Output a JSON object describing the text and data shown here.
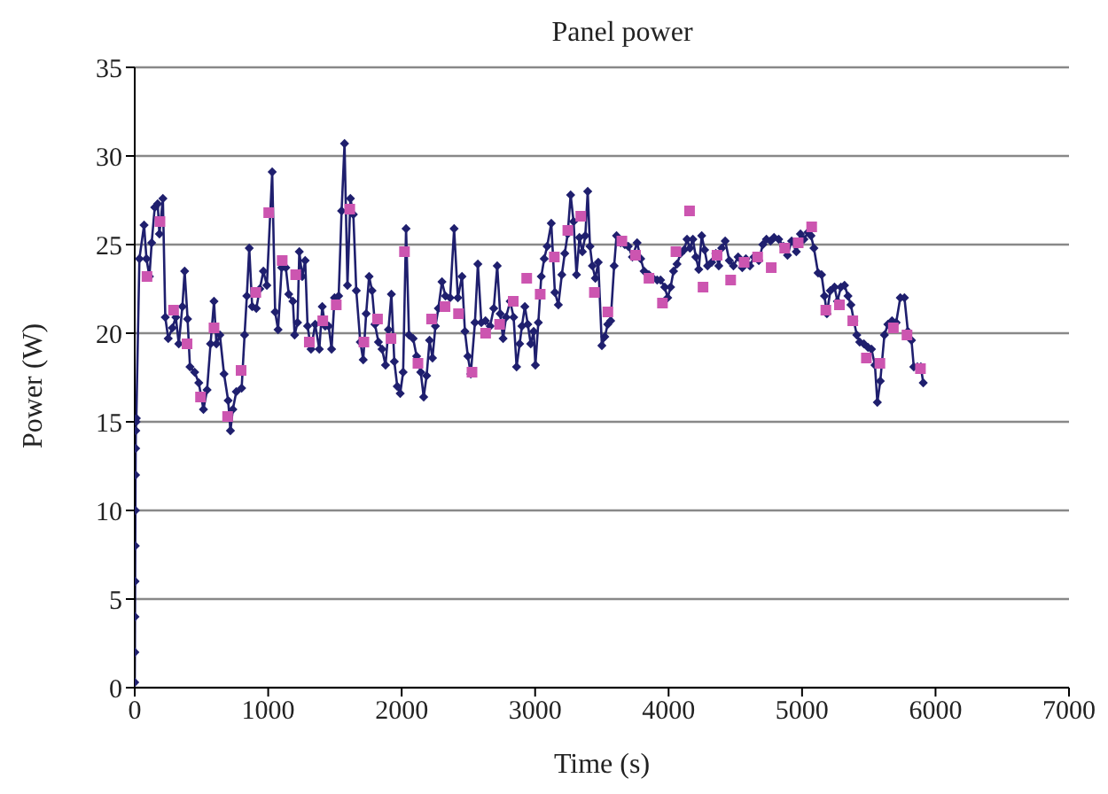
{
  "chart_data": {
    "type": "line",
    "title": "Panel power",
    "xlabel": "Time (s)",
    "ylabel": "Power (W)",
    "xlim": [
      0,
      7000
    ],
    "xticks": [
      0,
      1000,
      2000,
      3000,
      4000,
      5000,
      6000,
      7000
    ],
    "ylim": [
      0,
      35
    ],
    "yticks": [
      0,
      5,
      10,
      15,
      20,
      25,
      30,
      35
    ],
    "grid": "y",
    "legend": false,
    "series": [
      {
        "color": "#1f1f6e",
        "marker": "diamond",
        "x": [
          0,
          1,
          2,
          3,
          4,
          5,
          6,
          7,
          8,
          10,
          12,
          35,
          70,
          88,
          110,
          127,
          150,
          172,
          185,
          211,
          229,
          251,
          282,
          308,
          330,
          357,
          374,
          396,
          414,
          449,
          480,
          515,
          542,
          568,
          594,
          612,
          638,
          669,
          700,
          717,
          735,
          761,
          801,
          823,
          840,
          858,
          880,
          911,
          937,
          964,
          990,
          1030,
          1052,
          1074,
          1101,
          1132,
          1154,
          1185,
          1198,
          1220,
          1233,
          1255,
          1277,
          1295,
          1321,
          1352,
          1383,
          1405,
          1427,
          1453,
          1475,
          1497,
          1528,
          1550,
          1572,
          1594,
          1616,
          1638,
          1660,
          1690,
          1712,
          1734,
          1756,
          1778,
          1800,
          1826,
          1853,
          1879,
          1901,
          1923,
          1945,
          1967,
          1989,
          2011,
          2033,
          2055,
          2086,
          2112,
          2143,
          2165,
          2187,
          2209,
          2231,
          2253,
          2275,
          2302,
          2328,
          2363,
          2393,
          2421,
          2452,
          2474,
          2496,
          2518,
          2549,
          2571,
          2597,
          2628,
          2663,
          2690,
          2716,
          2738,
          2760,
          2782,
          2813,
          2839,
          2861,
          2884,
          2901,
          2923,
          2945,
          2967,
          2989,
          3002,
          3024,
          3046,
          3068,
          3090,
          3121,
          3148,
          3174,
          3200,
          3222,
          3244,
          3266,
          3288,
          3310,
          3332,
          3354,
          3376,
          3394,
          3411,
          3429,
          3451,
          3473,
          3500,
          3522,
          3544,
          3566,
          3592,
          3610,
          3641,
          3672,
          3698,
          3729,
          3764,
          3791,
          3817,
          3852,
          3883,
          3914,
          3940,
          3971,
          3993,
          4015,
          4037,
          4063,
          4090,
          4116,
          4138,
          4160,
          4182,
          4204,
          4226,
          4248,
          4270,
          4292,
          4323,
          4354,
          4376,
          4398,
          4424,
          4455,
          4486,
          4521,
          4552,
          4579,
          4609,
          4640,
          4676,
          4706,
          4733,
          4764,
          4790,
          4825,
          4861,
          4891,
          4922,
          4957,
          4988,
          5014,
          5045,
          5067,
          5089,
          5120,
          5146,
          5168,
          5186,
          5212,
          5243,
          5265,
          5291,
          5318,
          5344,
          5366,
          5388,
          5410,
          5432,
          5463,
          5494,
          5520,
          5546,
          5564,
          5586,
          5617,
          5643,
          5674,
          5705,
          5736,
          5767,
          5793,
          5820,
          5837,
          5864,
          5890,
          5908
        ],
        "values": [
          0.3,
          2,
          4,
          6,
          8,
          10,
          12,
          13.5,
          14.5,
          15,
          15.2,
          24.2,
          26.1,
          24.2,
          23.2,
          25.1,
          27.1,
          27.3,
          25.6,
          27.6,
          20.9,
          19.7,
          20.3,
          20.9,
          19.4,
          21.5,
          23.5,
          20.8,
          18.1,
          17.8,
          17.2,
          15.7,
          16.8,
          19.4,
          21.8,
          19.4,
          19.9,
          17.7,
          16.2,
          14.5,
          15.7,
          16.7,
          16.9,
          19.9,
          22.1,
          24.8,
          21.5,
          21.4,
          22.5,
          23.5,
          22.7,
          29.1,
          21.2,
          20.2,
          23.7,
          23.7,
          22.2,
          21.8,
          19.9,
          20.6,
          24.6,
          23.2,
          24.1,
          20.4,
          19.1,
          20.5,
          19.1,
          21.5,
          20.4,
          20.4,
          19.1,
          22,
          22.1,
          26.9,
          30.7,
          22.7,
          27.6,
          26.7,
          22.4,
          19.5,
          18.5,
          21.1,
          23.2,
          22.4,
          20.5,
          19.5,
          19.1,
          18.2,
          20.2,
          22.2,
          18.4,
          17,
          16.6,
          17.8,
          25.9,
          19.9,
          19.7,
          18.7,
          17.8,
          16.4,
          17.6,
          19.6,
          18.6,
          20.4,
          21.4,
          22.9,
          22.1,
          22,
          25.9,
          22,
          23.2,
          20.1,
          18.7,
          17.7,
          20.6,
          23.9,
          20.6,
          20.7,
          20.4,
          21.4,
          23.8,
          21.1,
          19.7,
          20.9,
          21.8,
          20.9,
          18.1,
          19.4,
          20.4,
          21.5,
          20.5,
          19.4,
          20.1,
          18.2,
          20.6,
          23.2,
          24.2,
          24.9,
          26.2,
          22.3,
          21.6,
          23.3,
          24.5,
          25.6,
          27.8,
          26.3,
          23.3,
          25.4,
          24.6,
          25.5,
          28,
          24.9,
          23.8,
          23.1,
          24,
          19.3,
          19.8,
          20.5,
          20.7,
          23.8,
          25.5,
          25.1,
          25,
          24.9,
          24.3,
          25.1,
          24.2,
          23.5,
          23.3,
          23.1,
          23,
          23,
          22.6,
          22,
          22.6,
          23.5,
          23.9,
          24.5,
          24.7,
          25.3,
          24.8,
          25.3,
          24.3,
          23.6,
          25.5,
          24.7,
          23.8,
          24,
          24.5,
          23.8,
          24.8,
          25.2,
          24.1,
          23.8,
          24.3,
          23.7,
          24.2,
          23.8,
          24.3,
          24.1,
          25,
          25.3,
          25.2,
          25.4,
          25.3,
          24.9,
          24.4,
          25.2,
          24.6,
          25.6,
          25.3,
          25.7,
          25.5,
          24.8,
          23.4,
          23.3,
          22.1,
          21.1,
          22.4,
          22.6,
          21.8,
          22.6,
          22.7,
          22.1,
          21.6,
          20.7,
          19.9,
          19.5,
          19.4,
          19.2,
          19.1,
          18.2,
          16.1,
          17.3,
          19.9,
          20.5,
          20.7,
          20.6,
          22,
          22,
          20.1,
          19.6,
          18.1,
          18.1,
          18.1,
          17.2
        ]
      },
      {
        "type": "scatter",
        "color": "#cc55b0",
        "marker": "square",
        "x": [
          92,
          189,
          291,
          392,
          493,
          594,
          696,
          797,
          907,
          1004,
          1105,
          1206,
          1308,
          1409,
          1510,
          1611,
          1717,
          1819,
          1920,
          2021,
          2122,
          2224,
          2325,
          2426,
          2527,
          2629,
          2734,
          2836,
          2937,
          3038,
          3144,
          3245,
          3342,
          3444,
          3545,
          3650,
          3752,
          3853,
          3954,
          4055,
          4157,
          4258,
          4363,
          4465,
          4566,
          4667,
          4769,
          4870,
          4971,
          5072,
          5178,
          5280,
          5380,
          5482,
          5583,
          5684,
          5786,
          5887
        ],
        "values": [
          23.2,
          26.3,
          21.3,
          19.4,
          16.4,
          20.3,
          15.3,
          17.9,
          22.3,
          26.8,
          24.1,
          23.3,
          19.5,
          20.7,
          21.6,
          27,
          19.5,
          20.8,
          19.7,
          24.6,
          18.3,
          20.8,
          21.5,
          21.1,
          17.8,
          20,
          20.5,
          21.8,
          23.1,
          22.2,
          24.3,
          25.8,
          26.6,
          22.3,
          21.2,
          25.2,
          24.4,
          23.1,
          21.7,
          24.6,
          26.9,
          22.6,
          24.4,
          23,
          24,
          24.3,
          23.7,
          24.8,
          25.1,
          26,
          21.3,
          21.6,
          20.7,
          18.6,
          18.3,
          20.3,
          19.9,
          18
        ]
      }
    ]
  }
}
